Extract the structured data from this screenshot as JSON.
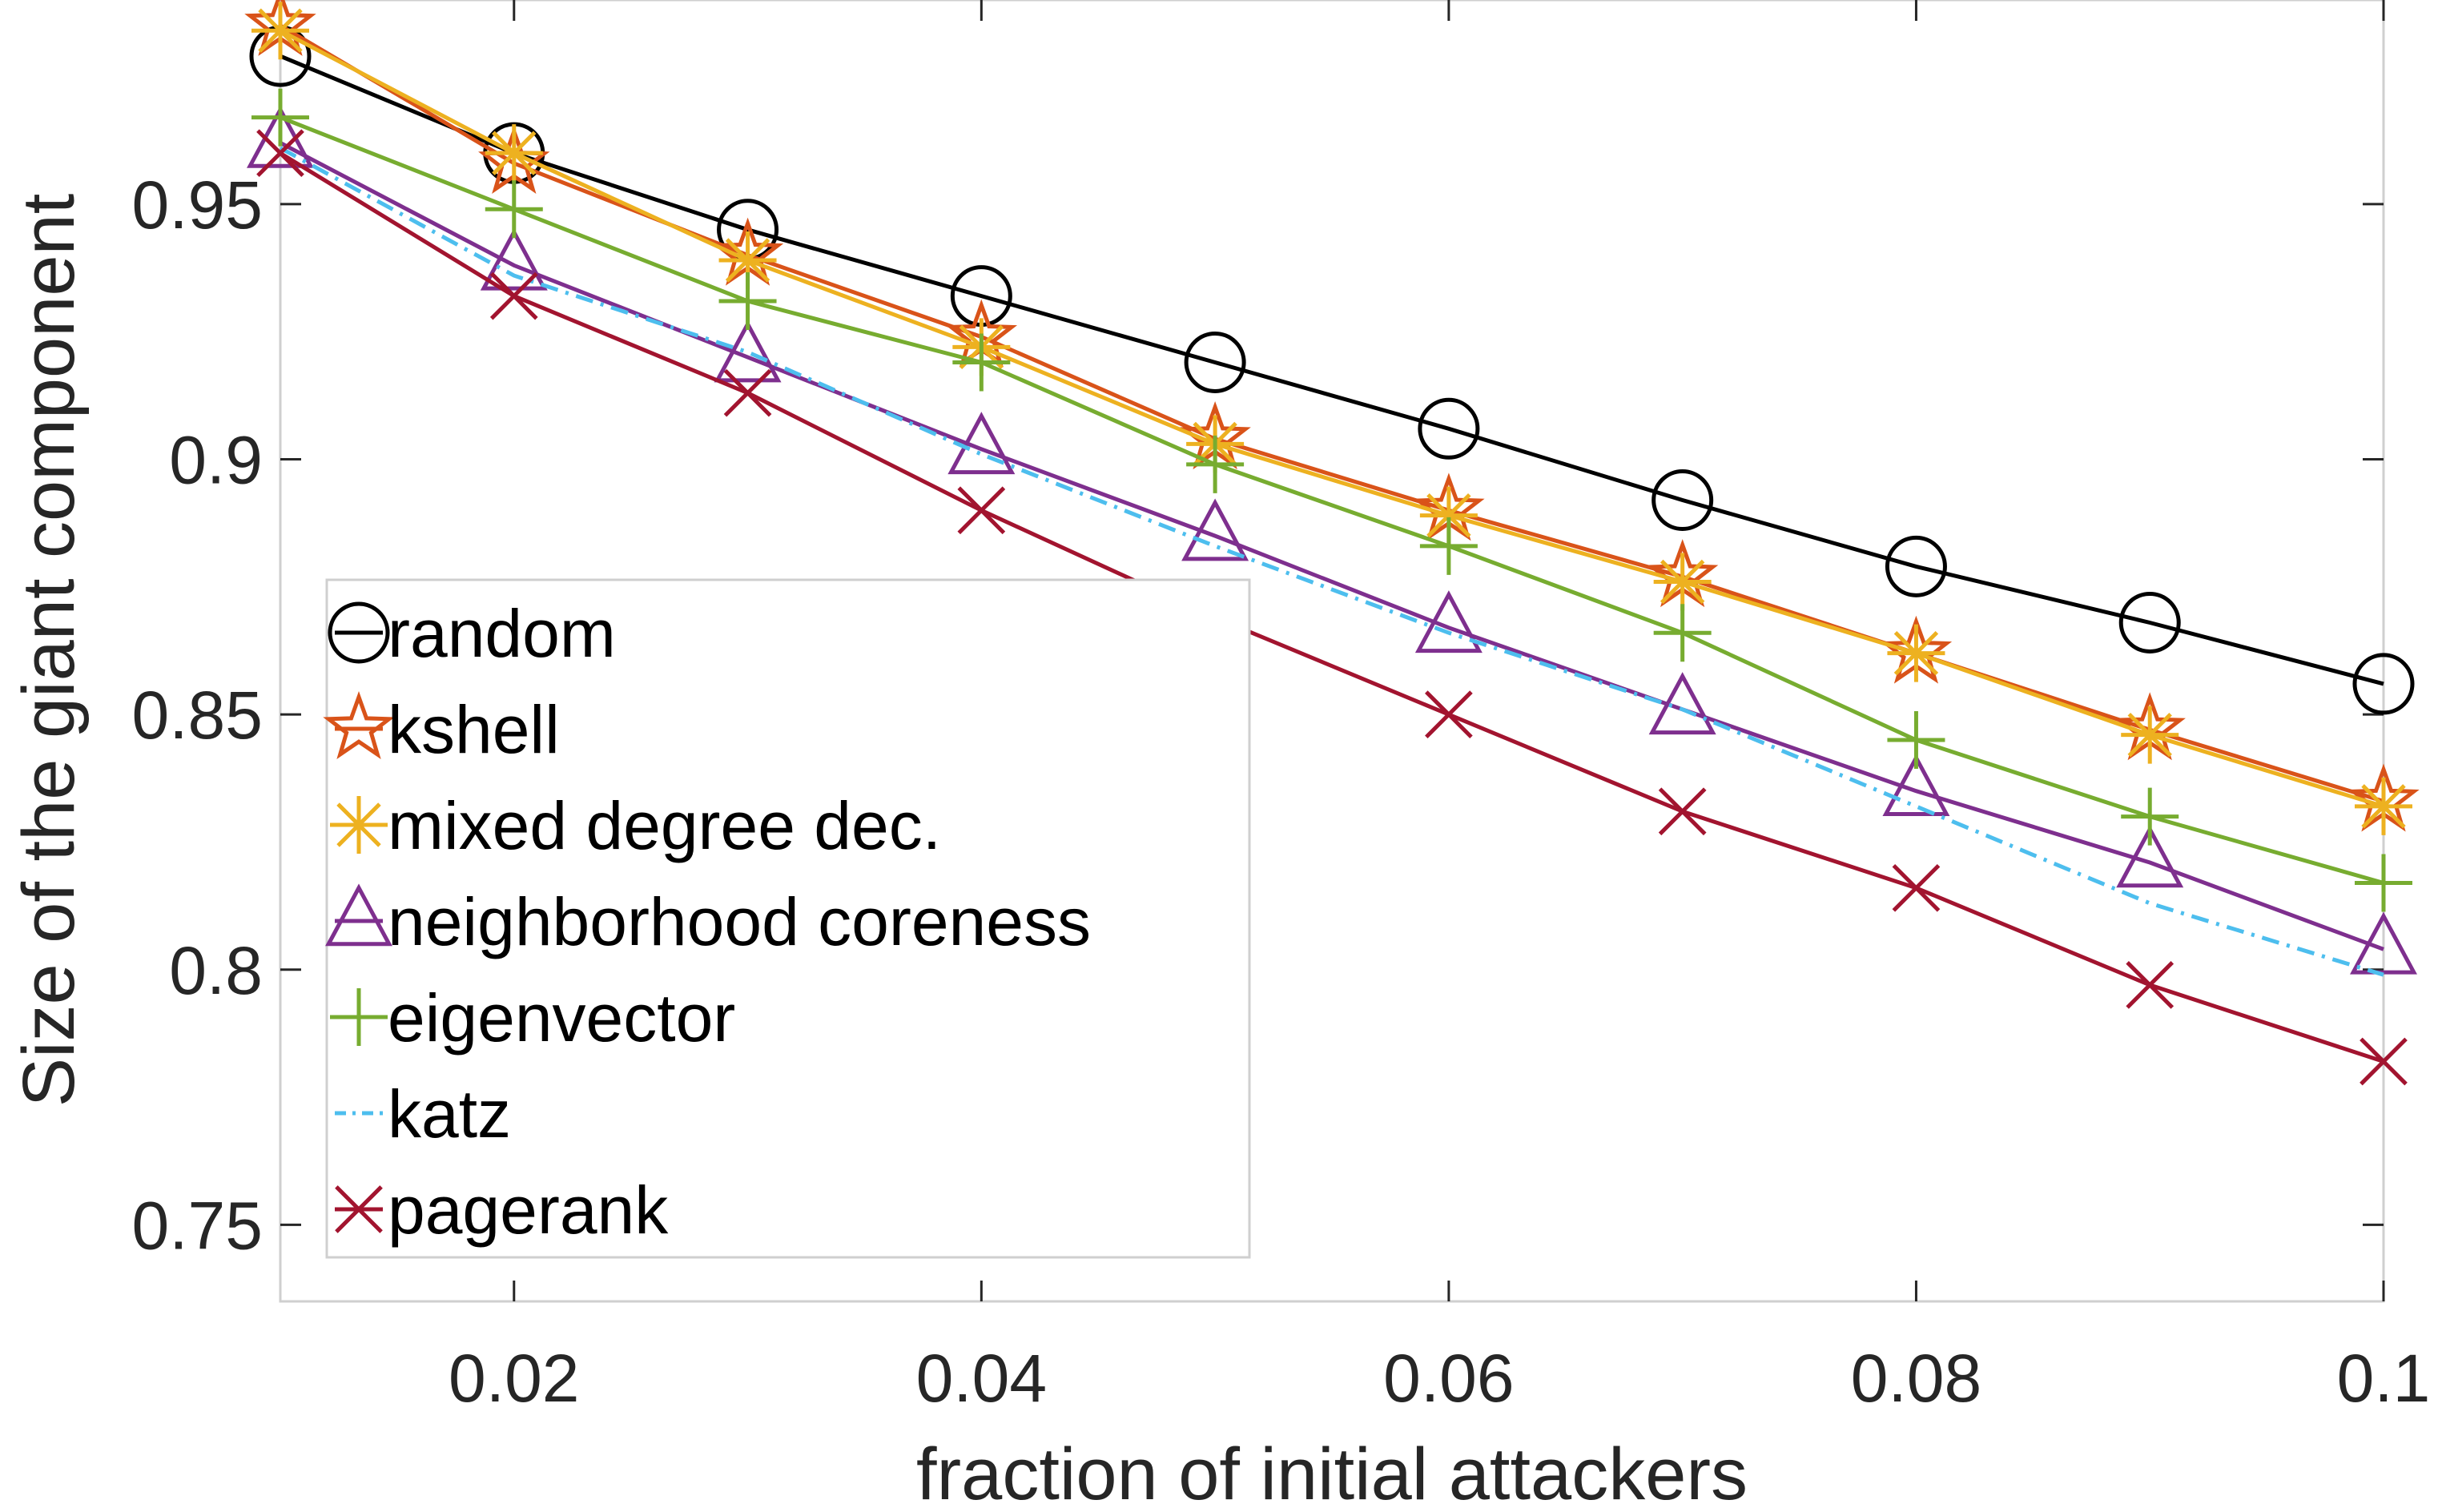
{
  "chart_data": {
    "type": "line",
    "xlabel": "fraction of initial attackers",
    "ylabel": "Size of the giant component",
    "xlim": [
      0.01,
      0.1
    ],
    "ylim": [
      0.735,
      0.99
    ],
    "xticks": [
      "0.02",
      "0.04",
      "0.06",
      "0.08",
      "0.1"
    ],
    "xtick_values": [
      0.02,
      0.04,
      0.06,
      0.08,
      0.1
    ],
    "yticks": [
      "0.75",
      "0.8",
      "0.85",
      "0.9",
      "0.95"
    ],
    "ytick_values": [
      0.75,
      0.8,
      0.85,
      0.9,
      0.95
    ],
    "grid": false,
    "box": true,
    "legend_position": "lower-left",
    "x": [
      0.01,
      0.02,
      0.03,
      0.04,
      0.05,
      0.06,
      0.07,
      0.08,
      0.09,
      0.1
    ],
    "series": [
      {
        "name": "random",
        "color": "#000000",
        "marker": "circle",
        "dash": "solid",
        "values": [
          0.979,
          0.96,
          0.945,
          0.932,
          0.919,
          0.906,
          0.892,
          0.879,
          0.868,
          0.856
        ]
      },
      {
        "name": "kshell",
        "color": "#D95319",
        "marker": "pentagram",
        "dash": "solid",
        "values": [
          0.985,
          0.958,
          0.94,
          0.924,
          0.904,
          0.89,
          0.877,
          0.862,
          0.847,
          0.833
        ]
      },
      {
        "name": "mixed degree dec.",
        "color": "#EDB120",
        "marker": "asterisk",
        "dash": "solid",
        "values": [
          0.984,
          0.96,
          0.939,
          0.922,
          0.903,
          0.889,
          0.876,
          0.862,
          0.846,
          0.832
        ]
      },
      {
        "name": "neighborhood coreness",
        "color": "#7E2F8E",
        "marker": "triangle",
        "dash": "solid",
        "values": [
          0.962,
          0.938,
          0.92,
          0.902,
          0.885,
          0.867,
          0.851,
          0.835,
          0.821,
          0.804
        ]
      },
      {
        "name": "eigenvector",
        "color": "#77AC30",
        "marker": "plus",
        "dash": "solid",
        "values": [
          0.967,
          0.949,
          0.931,
          0.919,
          0.899,
          0.883,
          0.866,
          0.845,
          0.83,
          0.817
        ]
      },
      {
        "name": "katz",
        "color": "#4DBEEE",
        "marker": "none",
        "dash": "dashdot",
        "values": [
          0.961,
          0.936,
          0.921,
          0.901,
          0.883,
          0.866,
          0.851,
          0.832,
          0.813,
          0.799
        ]
      },
      {
        "name": "pagerank",
        "color": "#A2142F",
        "marker": "x",
        "dash": "solid",
        "values": [
          0.96,
          0.932,
          0.913,
          0.89,
          0.869,
          0.85,
          0.831,
          0.816,
          0.797,
          0.782
        ]
      }
    ]
  }
}
